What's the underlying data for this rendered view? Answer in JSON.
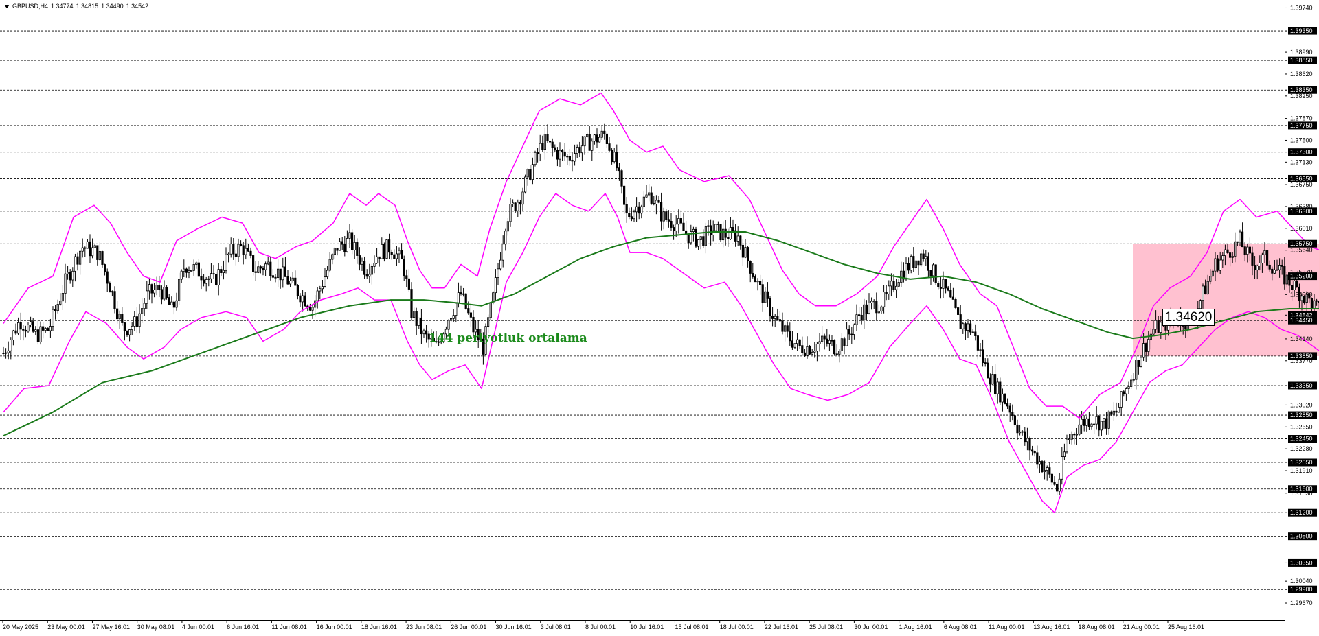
{
  "header": {
    "symbol": "GBPUSD,H4",
    "open": "1.34774",
    "high": "1.34815",
    "low": "1.34490",
    "close": "1.34542"
  },
  "annotation": "144 periyotluk ortalama",
  "current_price_box": "1.34620",
  "colors": {
    "bollinger": "#ff00ff",
    "moving_average": "#1a7a1a",
    "zone": "#ffb6c8",
    "candle": "#000000",
    "grid": "#000000",
    "annotation_text": "#1a8a1a"
  },
  "chart_data": {
    "type": "candlestick",
    "timeframe": "H4",
    "ylim": [
      1.2938,
      1.3985
    ],
    "indicators": [
      "Bollinger Bands",
      "144-period moving average"
    ],
    "y_axis_labels": [
      "1.39740",
      "1.39350",
      "1.38990",
      "1.38850",
      "1.38620",
      "1.38350",
      "1.38250",
      "1.37870",
      "1.37750",
      "1.37500",
      "1.37300",
      "1.37130",
      "1.36850",
      "1.36750",
      "1.36380",
      "1.36300",
      "1.36010",
      "1.35750",
      "1.35640",
      "1.35270",
      "1.35200",
      "1.34890",
      "1.34542",
      "1.34450",
      "1.34140",
      "1.33850",
      "1.33770",
      "1.33350",
      "1.33020",
      "1.32850",
      "1.32650",
      "1.32450",
      "1.32280",
      "1.32050",
      "1.31910",
      "1.31600",
      "1.31530",
      "1.31200",
      "1.30800",
      "1.30350",
      "1.30040",
      "1.29900",
      "1.29670"
    ],
    "highlighted_levels": [
      1.3935,
      1.3885,
      1.3835,
      1.3775,
      1.373,
      1.3685,
      1.363,
      1.3575,
      1.352,
      1.34542,
      1.3445,
      1.3385,
      1.3335,
      1.3285,
      1.3245,
      1.3205,
      1.316,
      1.312,
      1.308,
      1.3035,
      1.299
    ],
    "horizontal_levels": [
      1.3935,
      1.3885,
      1.3835,
      1.3775,
      1.373,
      1.3685,
      1.363,
      1.3575,
      1.352,
      1.3445,
      1.3385,
      1.3335,
      1.3285,
      1.3245,
      1.3205,
      1.316,
      1.312,
      1.308,
      1.3035,
      1.299
    ],
    "x_labels": [
      "20 May 2025",
      "23 May 00:01",
      "27 May 16:01",
      "30 May 08:01",
      "4 Jun 00:01",
      "6 Jun 16:01",
      "11 Jun 08:01",
      "16 Jun 00:01",
      "18 Jun 16:01",
      "23 Jun 08:01",
      "26 Jun 00:01",
      "30 Jun 16:01",
      "3 Jul 08:01",
      "8 Jul 00:01",
      "10 Jul 16:01",
      "15 Jul 08:01",
      "18 Jul 00:01",
      "22 Jul 16:01",
      "25 Jul 08:01",
      "30 Jul 00:01",
      "1 Aug 16:01",
      "6 Aug 08:01",
      "11 Aug 00:01",
      "13 Aug 16:01",
      "18 Aug 08:01",
      "21 Aug 00:01",
      "25 Aug 16:01"
    ],
    "price_path": [
      {
        "x": 0,
        "y": 1.339
      },
      {
        "x": 20,
        "y": 1.3445
      },
      {
        "x": 40,
        "y": 1.342
      },
      {
        "x": 55,
        "y": 1.343
      },
      {
        "x": 75,
        "y": 1.351
      },
      {
        "x": 95,
        "y": 1.357
      },
      {
        "x": 115,
        "y": 1.356
      },
      {
        "x": 130,
        "y": 1.35
      },
      {
        "x": 145,
        "y": 1.343
      },
      {
        "x": 160,
        "y": 1.344
      },
      {
        "x": 175,
        "y": 1.349
      },
      {
        "x": 190,
        "y": 1.35
      },
      {
        "x": 205,
        "y": 1.346
      },
      {
        "x": 220,
        "y": 1.354
      },
      {
        "x": 235,
        "y": 1.353
      },
      {
        "x": 255,
        "y": 1.351
      },
      {
        "x": 275,
        "y": 1.356
      },
      {
        "x": 290,
        "y": 1.357
      },
      {
        "x": 305,
        "y": 1.353
      },
      {
        "x": 320,
        "y": 1.354
      },
      {
        "x": 340,
        "y": 1.352
      },
      {
        "x": 360,
        "y": 1.349
      },
      {
        "x": 375,
        "y": 1.347
      },
      {
        "x": 390,
        "y": 1.352
      },
      {
        "x": 405,
        "y": 1.357
      },
      {
        "x": 420,
        "y": 1.358
      },
      {
        "x": 440,
        "y": 1.353
      },
      {
        "x": 455,
        "y": 1.356
      },
      {
        "x": 470,
        "y": 1.357
      },
      {
        "x": 485,
        "y": 1.354
      },
      {
        "x": 495,
        "y": 1.346
      },
      {
        "x": 510,
        "y": 1.342
      },
      {
        "x": 525,
        "y": 1.34
      },
      {
        "x": 540,
        "y": 1.345
      },
      {
        "x": 555,
        "y": 1.349
      },
      {
        "x": 570,
        "y": 1.343
      },
      {
        "x": 582,
        "y": 1.34
      },
      {
        "x": 595,
        "y": 1.349
      },
      {
        "x": 610,
        "y": 1.362
      },
      {
        "x": 625,
        "y": 1.365
      },
      {
        "x": 640,
        "y": 1.37
      },
      {
        "x": 655,
        "y": 1.375
      },
      {
        "x": 670,
        "y": 1.373
      },
      {
        "x": 685,
        "y": 1.372
      },
      {
        "x": 700,
        "y": 1.374
      },
      {
        "x": 715,
        "y": 1.375
      },
      {
        "x": 730,
        "y": 1.376
      },
      {
        "x": 745,
        "y": 1.37
      },
      {
        "x": 755,
        "y": 1.362
      },
      {
        "x": 770,
        "y": 1.364
      },
      {
        "x": 785,
        "y": 1.366
      },
      {
        "x": 800,
        "y": 1.362
      },
      {
        "x": 815,
        "y": 1.361
      },
      {
        "x": 830,
        "y": 1.359
      },
      {
        "x": 845,
        "y": 1.358
      },
      {
        "x": 860,
        "y": 1.36
      },
      {
        "x": 875,
        "y": 1.359
      },
      {
        "x": 890,
        "y": 1.359
      },
      {
        "x": 905,
        "y": 1.354
      },
      {
        "x": 920,
        "y": 1.349
      },
      {
        "x": 935,
        "y": 1.345
      },
      {
        "x": 950,
        "y": 1.342
      },
      {
        "x": 965,
        "y": 1.34
      },
      {
        "x": 980,
        "y": 1.34
      },
      {
        "x": 995,
        "y": 1.341
      },
      {
        "x": 1010,
        "y": 1.34
      },
      {
        "x": 1025,
        "y": 1.342
      },
      {
        "x": 1040,
        "y": 1.346
      },
      {
        "x": 1055,
        "y": 1.347
      },
      {
        "x": 1070,
        "y": 1.348
      },
      {
        "x": 1085,
        "y": 1.352
      },
      {
        "x": 1100,
        "y": 1.354
      },
      {
        "x": 1115,
        "y": 1.356
      },
      {
        "x": 1130,
        "y": 1.352
      },
      {
        "x": 1145,
        "y": 1.349
      },
      {
        "x": 1160,
        "y": 1.344
      },
      {
        "x": 1175,
        "y": 1.343
      },
      {
        "x": 1190,
        "y": 1.337
      },
      {
        "x": 1205,
        "y": 1.333
      },
      {
        "x": 1220,
        "y": 1.33
      },
      {
        "x": 1235,
        "y": 1.325
      },
      {
        "x": 1250,
        "y": 1.322
      },
      {
        "x": 1265,
        "y": 1.319
      },
      {
        "x": 1278,
        "y": 1.316
      },
      {
        "x": 1290,
        "y": 1.324
      },
      {
        "x": 1305,
        "y": 1.327
      },
      {
        "x": 1320,
        "y": 1.328
      },
      {
        "x": 1335,
        "y": 1.327
      },
      {
        "x": 1350,
        "y": 1.329
      },
      {
        "x": 1365,
        "y": 1.334
      },
      {
        "x": 1380,
        "y": 1.339
      },
      {
        "x": 1395,
        "y": 1.343
      },
      {
        "x": 1410,
        "y": 1.344
      },
      {
        "x": 1425,
        "y": 1.345
      },
      {
        "x": 1440,
        "y": 1.344
      },
      {
        "x": 1455,
        "y": 1.349
      },
      {
        "x": 1470,
        "y": 1.354
      },
      {
        "x": 1485,
        "y": 1.356
      },
      {
        "x": 1500,
        "y": 1.358
      },
      {
        "x": 1515,
        "y": 1.354
      },
      {
        "x": 1530,
        "y": 1.355
      },
      {
        "x": 1545,
        "y": 1.353
      },
      {
        "x": 1560,
        "y": 1.351
      },
      {
        "x": 1575,
        "y": 1.349
      },
      {
        "x": 1590,
        "y": 1.347
      },
      {
        "x": 1605,
        "y": 1.345
      },
      {
        "x": 1620,
        "y": 1.343
      },
      {
        "x": 1635,
        "y": 1.34
      },
      {
        "x": 1648,
        "y": 1.353
      },
      {
        "x": 1660,
        "y": 1.351
      },
      {
        "x": 1672,
        "y": 1.348
      },
      {
        "x": 1682,
        "y": 1.346
      }
    ],
    "upper_band": [
      {
        "x": 0,
        "y": 1.344
      },
      {
        "x": 30,
        "y": 1.35
      },
      {
        "x": 60,
        "y": 1.352
      },
      {
        "x": 85,
        "y": 1.362
      },
      {
        "x": 110,
        "y": 1.364
      },
      {
        "x": 130,
        "y": 1.361
      },
      {
        "x": 150,
        "y": 1.356
      },
      {
        "x": 170,
        "y": 1.352
      },
      {
        "x": 190,
        "y": 1.351
      },
      {
        "x": 210,
        "y": 1.358
      },
      {
        "x": 235,
        "y": 1.36
      },
      {
        "x": 265,
        "y": 1.362
      },
      {
        "x": 290,
        "y": 1.361
      },
      {
        "x": 310,
        "y": 1.356
      },
      {
        "x": 330,
        "y": 1.355
      },
      {
        "x": 355,
        "y": 1.357
      },
      {
        "x": 375,
        "y": 1.358
      },
      {
        "x": 400,
        "y": 1.361
      },
      {
        "x": 420,
        "y": 1.366
      },
      {
        "x": 440,
        "y": 1.364
      },
      {
        "x": 455,
        "y": 1.366
      },
      {
        "x": 475,
        "y": 1.364
      },
      {
        "x": 490,
        "y": 1.358
      },
      {
        "x": 505,
        "y": 1.353
      },
      {
        "x": 520,
        "y": 1.35
      },
      {
        "x": 535,
        "y": 1.35
      },
      {
        "x": 555,
        "y": 1.354
      },
      {
        "x": 575,
        "y": 1.352
      },
      {
        "x": 590,
        "y": 1.36
      },
      {
        "x": 610,
        "y": 1.368
      },
      {
        "x": 630,
        "y": 1.374
      },
      {
        "x": 650,
        "y": 1.38
      },
      {
        "x": 675,
        "y": 1.382
      },
      {
        "x": 700,
        "y": 1.381
      },
      {
        "x": 725,
        "y": 1.383
      },
      {
        "x": 740,
        "y": 1.38
      },
      {
        "x": 760,
        "y": 1.375
      },
      {
        "x": 780,
        "y": 1.373
      },
      {
        "x": 800,
        "y": 1.374
      },
      {
        "x": 820,
        "y": 1.37
      },
      {
        "x": 850,
        "y": 1.368
      },
      {
        "x": 880,
        "y": 1.369
      },
      {
        "x": 905,
        "y": 1.365
      },
      {
        "x": 925,
        "y": 1.359
      },
      {
        "x": 945,
        "y": 1.353
      },
      {
        "x": 965,
        "y": 1.349
      },
      {
        "x": 985,
        "y": 1.347
      },
      {
        "x": 1010,
        "y": 1.347
      },
      {
        "x": 1035,
        "y": 1.349
      },
      {
        "x": 1060,
        "y": 1.352
      },
      {
        "x": 1080,
        "y": 1.357
      },
      {
        "x": 1100,
        "y": 1.361
      },
      {
        "x": 1120,
        "y": 1.365
      },
      {
        "x": 1140,
        "y": 1.36
      },
      {
        "x": 1160,
        "y": 1.354
      },
      {
        "x": 1185,
        "y": 1.349
      },
      {
        "x": 1205,
        "y": 1.347
      },
      {
        "x": 1225,
        "y": 1.34
      },
      {
        "x": 1245,
        "y": 1.333
      },
      {
        "x": 1265,
        "y": 1.33
      },
      {
        "x": 1285,
        "y": 1.33
      },
      {
        "x": 1305,
        "y": 1.328
      },
      {
        "x": 1330,
        "y": 1.332
      },
      {
        "x": 1355,
        "y": 1.334
      },
      {
        "x": 1375,
        "y": 1.34
      },
      {
        "x": 1395,
        "y": 1.347
      },
      {
        "x": 1415,
        "y": 1.35
      },
      {
        "x": 1440,
        "y": 1.352
      },
      {
        "x": 1460,
        "y": 1.356
      },
      {
        "x": 1480,
        "y": 1.363
      },
      {
        "x": 1500,
        "y": 1.365
      },
      {
        "x": 1520,
        "y": 1.362
      },
      {
        "x": 1545,
        "y": 1.363
      },
      {
        "x": 1565,
        "y": 1.36
      },
      {
        "x": 1585,
        "y": 1.357
      },
      {
        "x": 1605,
        "y": 1.356
      },
      {
        "x": 1625,
        "y": 1.354
      },
      {
        "x": 1640,
        "y": 1.351
      },
      {
        "x": 1655,
        "y": 1.357
      },
      {
        "x": 1670,
        "y": 1.356
      },
      {
        "x": 1682,
        "y": 1.354
      }
    ],
    "lower_band": [
      {
        "x": 0,
        "y": 1.329
      },
      {
        "x": 25,
        "y": 1.333
      },
      {
        "x": 55,
        "y": 1.3335
      },
      {
        "x": 80,
        "y": 1.341
      },
      {
        "x": 100,
        "y": 1.346
      },
      {
        "x": 125,
        "y": 1.344
      },
      {
        "x": 150,
        "y": 1.34
      },
      {
        "x": 170,
        "y": 1.338
      },
      {
        "x": 195,
        "y": 1.34
      },
      {
        "x": 215,
        "y": 1.343
      },
      {
        "x": 240,
        "y": 1.345
      },
      {
        "x": 270,
        "y": 1.346
      },
      {
        "x": 295,
        "y": 1.345
      },
      {
        "x": 315,
        "y": 1.341
      },
      {
        "x": 340,
        "y": 1.343
      },
      {
        "x": 360,
        "y": 1.346
      },
      {
        "x": 385,
        "y": 1.348
      },
      {
        "x": 410,
        "y": 1.349
      },
      {
        "x": 430,
        "y": 1.35
      },
      {
        "x": 450,
        "y": 1.348
      },
      {
        "x": 470,
        "y": 1.348
      },
      {
        "x": 490,
        "y": 1.341
      },
      {
        "x": 505,
        "y": 1.337
      },
      {
        "x": 520,
        "y": 1.3345
      },
      {
        "x": 540,
        "y": 1.336
      },
      {
        "x": 560,
        "y": 1.337
      },
      {
        "x": 580,
        "y": 1.333
      },
      {
        "x": 595,
        "y": 1.342
      },
      {
        "x": 610,
        "y": 1.351
      },
      {
        "x": 630,
        "y": 1.356
      },
      {
        "x": 650,
        "y": 1.362
      },
      {
        "x": 670,
        "y": 1.366
      },
      {
        "x": 690,
        "y": 1.364
      },
      {
        "x": 710,
        "y": 1.363
      },
      {
        "x": 730,
        "y": 1.366
      },
      {
        "x": 745,
        "y": 1.362
      },
      {
        "x": 760,
        "y": 1.356
      },
      {
        "x": 780,
        "y": 1.356
      },
      {
        "x": 800,
        "y": 1.355
      },
      {
        "x": 820,
        "y": 1.353
      },
      {
        "x": 850,
        "y": 1.35
      },
      {
        "x": 875,
        "y": 1.351
      },
      {
        "x": 895,
        "y": 1.347
      },
      {
        "x": 915,
        "y": 1.342
      },
      {
        "x": 935,
        "y": 1.337
      },
      {
        "x": 955,
        "y": 1.333
      },
      {
        "x": 975,
        "y": 1.332
      },
      {
        "x": 1000,
        "y": 1.331
      },
      {
        "x": 1025,
        "y": 1.332
      },
      {
        "x": 1050,
        "y": 1.334
      },
      {
        "x": 1075,
        "y": 1.34
      },
      {
        "x": 1100,
        "y": 1.344
      },
      {
        "x": 1120,
        "y": 1.347
      },
      {
        "x": 1140,
        "y": 1.343
      },
      {
        "x": 1160,
        "y": 1.338
      },
      {
        "x": 1180,
        "y": 1.337
      },
      {
        "x": 1200,
        "y": 1.331
      },
      {
        "x": 1220,
        "y": 1.324
      },
      {
        "x": 1240,
        "y": 1.319
      },
      {
        "x": 1260,
        "y": 1.314
      },
      {
        "x": 1275,
        "y": 1.312
      },
      {
        "x": 1290,
        "y": 1.318
      },
      {
        "x": 1310,
        "y": 1.32
      },
      {
        "x": 1330,
        "y": 1.321
      },
      {
        "x": 1350,
        "y": 1.324
      },
      {
        "x": 1370,
        "y": 1.329
      },
      {
        "x": 1390,
        "y": 1.334
      },
      {
        "x": 1410,
        "y": 1.336
      },
      {
        "x": 1430,
        "y": 1.337
      },
      {
        "x": 1450,
        "y": 1.34
      },
      {
        "x": 1470,
        "y": 1.343
      },
      {
        "x": 1490,
        "y": 1.345
      },
      {
        "x": 1510,
        "y": 1.346
      },
      {
        "x": 1530,
        "y": 1.345
      },
      {
        "x": 1550,
        "y": 1.343
      },
      {
        "x": 1570,
        "y": 1.342
      },
      {
        "x": 1590,
        "y": 1.34
      },
      {
        "x": 1610,
        "y": 1.338
      },
      {
        "x": 1628,
        "y": 1.334
      },
      {
        "x": 1640,
        "y": 1.333
      },
      {
        "x": 1655,
        "y": 1.34
      },
      {
        "x": 1670,
        "y": 1.34
      },
      {
        "x": 1682,
        "y": 1.339
      }
    ],
    "moving_average": [
      {
        "x": 0,
        "y": 1.325
      },
      {
        "x": 60,
        "y": 1.329
      },
      {
        "x": 120,
        "y": 1.334
      },
      {
        "x": 180,
        "y": 1.336
      },
      {
        "x": 240,
        "y": 1.339
      },
      {
        "x": 300,
        "y": 1.342
      },
      {
        "x": 360,
        "y": 1.345
      },
      {
        "x": 420,
        "y": 1.347
      },
      {
        "x": 470,
        "y": 1.348
      },
      {
        "x": 510,
        "y": 1.348
      },
      {
        "x": 550,
        "y": 1.3475
      },
      {
        "x": 580,
        "y": 1.347
      },
      {
        "x": 620,
        "y": 1.349
      },
      {
        "x": 660,
        "y": 1.352
      },
      {
        "x": 700,
        "y": 1.355
      },
      {
        "x": 740,
        "y": 1.357
      },
      {
        "x": 780,
        "y": 1.3585
      },
      {
        "x": 820,
        "y": 1.359
      },
      {
        "x": 860,
        "y": 1.3595
      },
      {
        "x": 900,
        "y": 1.3595
      },
      {
        "x": 940,
        "y": 1.358
      },
      {
        "x": 980,
        "y": 1.356
      },
      {
        "x": 1020,
        "y": 1.354
      },
      {
        "x": 1060,
        "y": 1.3525
      },
      {
        "x": 1100,
        "y": 1.3515
      },
      {
        "x": 1140,
        "y": 1.352
      },
      {
        "x": 1180,
        "y": 1.351
      },
      {
        "x": 1220,
        "y": 1.349
      },
      {
        "x": 1260,
        "y": 1.3465
      },
      {
        "x": 1300,
        "y": 1.3445
      },
      {
        "x": 1340,
        "y": 1.3425
      },
      {
        "x": 1370,
        "y": 1.3415
      },
      {
        "x": 1400,
        "y": 1.342
      },
      {
        "x": 1440,
        "y": 1.343
      },
      {
        "x": 1480,
        "y": 1.3445
      },
      {
        "x": 1520,
        "y": 1.346
      },
      {
        "x": 1560,
        "y": 1.3465
      },
      {
        "x": 1600,
        "y": 1.3465
      },
      {
        "x": 1640,
        "y": 1.346
      },
      {
        "x": 1682,
        "y": 1.3465
      }
    ],
    "zone": {
      "x0": 1370,
      "x1": 1692,
      "y_top": 1.3575,
      "y_bottom": 1.3385
    }
  }
}
